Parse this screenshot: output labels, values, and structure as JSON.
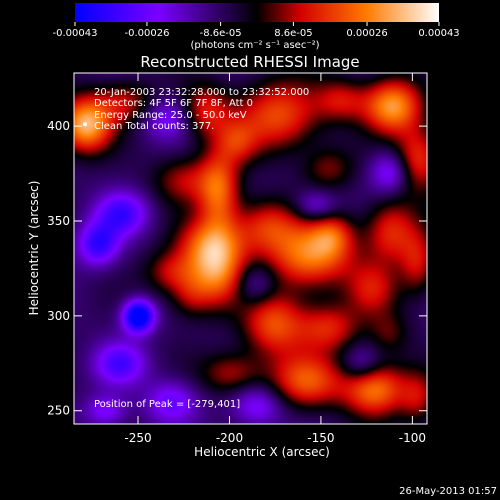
{
  "chart_data": {
    "type": "heatmap",
    "title": "Reconstructed RHESSI Image",
    "xlabel": "Heliocentric X (arcsec)",
    "ylabel": "Heliocentric Y (arcsec)",
    "xlim": [
      -285,
      -92
    ],
    "ylim": [
      243,
      428
    ],
    "x_ticks": [
      -250,
      -200,
      -150,
      -100
    ],
    "y_ticks": [
      250,
      300,
      350,
      400
    ],
    "colorbar": {
      "unit_label": "(photons cm⁻² s⁻¹ asec⁻²)",
      "range": [
        -0.00043,
        0.00043
      ],
      "tick_values": [
        -0.00043,
        -0.00026,
        -8.6e-05,
        8.6e-05,
        0.00026,
        0.00043
      ],
      "tick_labels": [
        "-0.00043",
        "-0.00026",
        "-8.6e-05",
        "8.6e-05",
        "0.00026",
        "0.00043"
      ],
      "colors": [
        "#0000ff",
        "#7a00ff",
        "#000000",
        "#d40000",
        "#ff7a00",
        "#ffffff"
      ]
    },
    "info_lines": [
      "20-Jan-2003 23:32:28.000 to 23:32:52.000",
      "Detectors: 4F 5F 6F 7F 8F, Att 0",
      "Energy Range: 25.0 - 50.0 keV",
      "Clean     Total counts: 377."
    ],
    "peak_annotation": "Position of Peak = [-279,401]",
    "peak": {
      "x": -279,
      "y": 401,
      "value": 0.00043
    },
    "grid": false,
    "blobs": [
      {
        "x": -279,
        "y": 401,
        "sx": 10,
        "sy": 10,
        "a": 0.00042
      },
      {
        "x": -257,
        "y": 413,
        "sx": 12,
        "sy": 8,
        "a": 0.00018
      },
      {
        "x": -214,
        "y": 408,
        "sx": 10,
        "sy": 10,
        "a": 0.00022
      },
      {
        "x": -196,
        "y": 392,
        "sx": 8,
        "sy": 8,
        "a": 0.00016
      },
      {
        "x": -173,
        "y": 406,
        "sx": 16,
        "sy": 13,
        "a": 0.00028
      },
      {
        "x": -139,
        "y": 414,
        "sx": 10,
        "sy": 8,
        "a": 0.00018
      },
      {
        "x": -111,
        "y": 411,
        "sx": 11,
        "sy": 10,
        "a": 0.00038
      },
      {
        "x": -97,
        "y": 383,
        "sx": 9,
        "sy": 12,
        "a": 0.00026
      },
      {
        "x": -146,
        "y": 378,
        "sx": 10,
        "sy": 8,
        "a": 0.00014
      },
      {
        "x": -225,
        "y": 372,
        "sx": 12,
        "sy": 9,
        "a": 0.00017
      },
      {
        "x": -206,
        "y": 366,
        "sx": 8,
        "sy": 15,
        "a": 0.0003
      },
      {
        "x": -210,
        "y": 338,
        "sx": 13,
        "sy": 10,
        "a": 0.00027
      },
      {
        "x": -208,
        "y": 322,
        "sx": 11,
        "sy": 12,
        "a": 0.00031
      },
      {
        "x": -180,
        "y": 348,
        "sx": 12,
        "sy": 10,
        "a": 0.00022
      },
      {
        "x": -156,
        "y": 332,
        "sx": 16,
        "sy": 12,
        "a": 0.00035
      },
      {
        "x": -144,
        "y": 343,
        "sx": 8,
        "sy": 8,
        "a": 0.00018
      },
      {
        "x": -112,
        "y": 345,
        "sx": 10,
        "sy": 12,
        "a": 0.00024
      },
      {
        "x": -97,
        "y": 328,
        "sx": 7,
        "sy": 12,
        "a": 0.00019
      },
      {
        "x": -232,
        "y": 323,
        "sx": 10,
        "sy": 8,
        "a": 0.00018
      },
      {
        "x": -222,
        "y": 310,
        "sx": 8,
        "sy": 8,
        "a": 0.00012
      },
      {
        "x": -176,
        "y": 296,
        "sx": 12,
        "sy": 12,
        "a": 0.00028
      },
      {
        "x": -146,
        "y": 294,
        "sx": 12,
        "sy": 9,
        "a": 0.00022
      },
      {
        "x": -122,
        "y": 314,
        "sx": 10,
        "sy": 10,
        "a": 0.00018
      },
      {
        "x": -113,
        "y": 291,
        "sx": 8,
        "sy": 8,
        "a": 0.00012
      },
      {
        "x": -158,
        "y": 266,
        "sx": 14,
        "sy": 10,
        "a": 0.00028
      },
      {
        "x": -121,
        "y": 262,
        "sx": 12,
        "sy": 10,
        "a": 0.00035
      },
      {
        "x": -97,
        "y": 257,
        "sx": 7,
        "sy": 10,
        "a": 0.00016
      },
      {
        "x": -199,
        "y": 270,
        "sx": 12,
        "sy": 8,
        "a": 0.00018
      },
      {
        "x": -250,
        "y": 300,
        "sx": 6,
        "sy": 6,
        "a": -0.00043
      },
      {
        "x": -272,
        "y": 338,
        "sx": 8,
        "sy": 8,
        "a": -0.00026
      },
      {
        "x": -259,
        "y": 354,
        "sx": 10,
        "sy": 8,
        "a": -0.00023
      },
      {
        "x": -260,
        "y": 275,
        "sx": 10,
        "sy": 8,
        "a": -0.00021
      },
      {
        "x": -232,
        "y": 255,
        "sx": 10,
        "sy": 8,
        "a": -0.00018
      },
      {
        "x": -185,
        "y": 253,
        "sx": 10,
        "sy": 8,
        "a": -0.00017
      },
      {
        "x": -234,
        "y": 405,
        "sx": 10,
        "sy": 8,
        "a": -0.00016
      },
      {
        "x": -112,
        "y": 376,
        "sx": 8,
        "sy": 8,
        "a": -0.00019
      },
      {
        "x": -186,
        "y": 317,
        "sx": 8,
        "sy": 8,
        "a": -0.00015
      },
      {
        "x": -153,
        "y": 358,
        "sx": 8,
        "sy": 6,
        "a": -0.00016
      },
      {
        "x": -128,
        "y": 274,
        "sx": 8,
        "sy": 7,
        "a": -0.00014
      },
      {
        "x": -268,
        "y": 250,
        "sx": 8,
        "sy": 6,
        "a": -0.00016
      }
    ]
  },
  "footer": {
    "date_stamp": "26-May-2013 01:57"
  }
}
